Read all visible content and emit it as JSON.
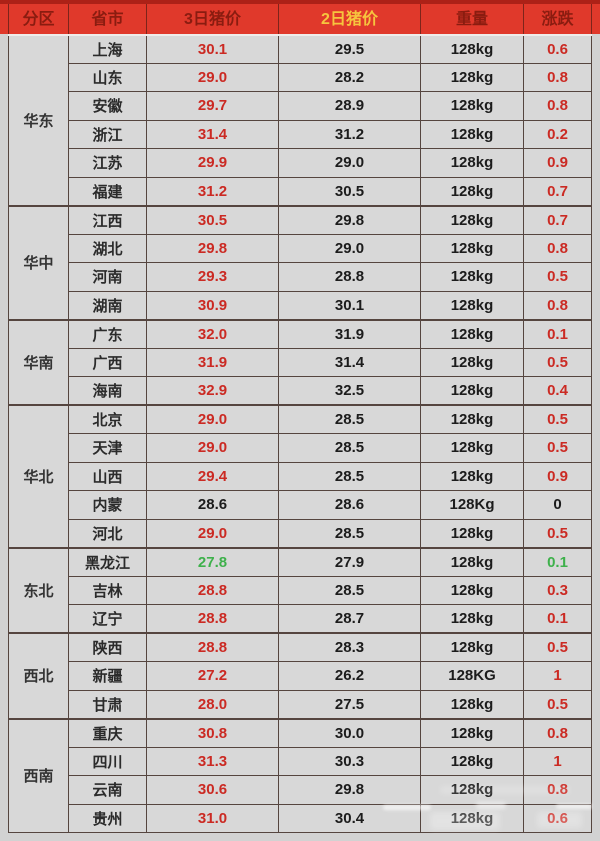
{
  "colors": {
    "red": "#cb2a23",
    "green": "#3eb14b",
    "black": "#1c1c1c",
    "header_bg": "#e0392b",
    "header_text": "#8a1c10",
    "header_highlight": "#f6c53e",
    "row_bg": "#d8d8d8",
    "border": "#55453f",
    "page_bg": "#d2d2d2",
    "top_strip": "#ad2117"
  },
  "chart_data": {
    "type": "table",
    "columns": [
      "分区",
      "省市",
      "3日猪价",
      "2日猪价",
      "重量",
      "涨跌"
    ],
    "highlight_column_index": 3,
    "regions": [
      {
        "name": "华东",
        "rows": [
          {
            "province": "上海",
            "day3": "30.1",
            "day3_color": "red",
            "day2": "29.5",
            "weight": "128kg",
            "change": "0.6",
            "change_color": "red"
          },
          {
            "province": "山东",
            "day3": "29.0",
            "day3_color": "red",
            "day2": "28.2",
            "weight": "128kg",
            "change": "0.8",
            "change_color": "red"
          },
          {
            "province": "安徽",
            "day3": "29.7",
            "day3_color": "red",
            "day2": "28.9",
            "weight": "128kg",
            "change": "0.8",
            "change_color": "red"
          },
          {
            "province": "浙江",
            "day3": "31.4",
            "day3_color": "red",
            "day2": "31.2",
            "weight": "128kg",
            "change": "0.2",
            "change_color": "red"
          },
          {
            "province": "江苏",
            "day3": "29.9",
            "day3_color": "red",
            "day2": "29.0",
            "weight": "128kg",
            "change": "0.9",
            "change_color": "red"
          },
          {
            "province": "福建",
            "day3": "31.2",
            "day3_color": "red",
            "day2": "30.5",
            "weight": "128kg",
            "change": "0.7",
            "change_color": "red"
          }
        ]
      },
      {
        "name": "华中",
        "rows": [
          {
            "province": "江西",
            "day3": "30.5",
            "day3_color": "red",
            "day2": "29.8",
            "weight": "128kg",
            "change": "0.7",
            "change_color": "red"
          },
          {
            "province": "湖北",
            "day3": "29.8",
            "day3_color": "red",
            "day2": "29.0",
            "weight": "128kg",
            "change": "0.8",
            "change_color": "red"
          },
          {
            "province": "河南",
            "day3": "29.3",
            "day3_color": "red",
            "day2": "28.8",
            "weight": "128kg",
            "change": "0.5",
            "change_color": "red"
          },
          {
            "province": "湖南",
            "day3": "30.9",
            "day3_color": "red",
            "day2": "30.1",
            "weight": "128kg",
            "change": "0.8",
            "change_color": "red"
          }
        ]
      },
      {
        "name": "华南",
        "rows": [
          {
            "province": "广东",
            "day3": "32.0",
            "day3_color": "red",
            "day2": "31.9",
            "weight": "128kg",
            "change": "0.1",
            "change_color": "red"
          },
          {
            "province": "广西",
            "day3": "31.9",
            "day3_color": "red",
            "day2": "31.4",
            "weight": "128kg",
            "change": "0.5",
            "change_color": "red"
          },
          {
            "province": "海南",
            "day3": "32.9",
            "day3_color": "red",
            "day2": "32.5",
            "weight": "128kg",
            "change": "0.4",
            "change_color": "red"
          }
        ]
      },
      {
        "name": "华北",
        "rows": [
          {
            "province": "北京",
            "day3": "29.0",
            "day3_color": "red",
            "day2": "28.5",
            "weight": "128kg",
            "change": "0.5",
            "change_color": "red"
          },
          {
            "province": "天津",
            "day3": "29.0",
            "day3_color": "red",
            "day2": "28.5",
            "weight": "128kg",
            "change": "0.5",
            "change_color": "red"
          },
          {
            "province": "山西",
            "day3": "29.4",
            "day3_color": "red",
            "day2": "28.5",
            "weight": "128kg",
            "change": "0.9",
            "change_color": "red"
          },
          {
            "province": "内蒙",
            "day3": "28.6",
            "day3_color": "black",
            "day2": "28.6",
            "weight": "128Kg",
            "change": "0",
            "change_color": "black"
          },
          {
            "province": "河北",
            "day3": "29.0",
            "day3_color": "red",
            "day2": "28.5",
            "weight": "128kg",
            "change": "0.5",
            "change_color": "red"
          }
        ]
      },
      {
        "name": "东北",
        "rows": [
          {
            "province": "黑龙江",
            "day3": "27.8",
            "day3_color": "green",
            "day2": "27.9",
            "weight": "128kg",
            "change": "0.1",
            "change_color": "green"
          },
          {
            "province": "吉林",
            "day3": "28.8",
            "day3_color": "red",
            "day2": "28.5",
            "weight": "128kg",
            "change": "0.3",
            "change_color": "red"
          },
          {
            "province": "辽宁",
            "day3": "28.8",
            "day3_color": "red",
            "day2": "28.7",
            "weight": "128kg",
            "change": "0.1",
            "change_color": "red"
          }
        ]
      },
      {
        "name": "西北",
        "rows": [
          {
            "province": "陕西",
            "day3": "28.8",
            "day3_color": "red",
            "day2": "28.3",
            "weight": "128kg",
            "change": "0.5",
            "change_color": "red"
          },
          {
            "province": "新疆",
            "day3": "27.2",
            "day3_color": "red",
            "day2": "26.2",
            "weight": "128KG",
            "change": "1",
            "change_color": "red"
          },
          {
            "province": "甘肃",
            "day3": "28.0",
            "day3_color": "red",
            "day2": "27.5",
            "weight": "128kg",
            "change": "0.5",
            "change_color": "red"
          }
        ]
      },
      {
        "name": "西南",
        "rows": [
          {
            "province": "重庆",
            "day3": "30.8",
            "day3_color": "red",
            "day2": "30.0",
            "weight": "128kg",
            "change": "0.8",
            "change_color": "red"
          },
          {
            "province": "四川",
            "day3": "31.3",
            "day3_color": "red",
            "day2": "30.3",
            "weight": "128kg",
            "change": "1",
            "change_color": "red"
          },
          {
            "province": "云南",
            "day3": "30.6",
            "day3_color": "red",
            "day2": "29.8",
            "weight": "128kg",
            "change": "0.8",
            "change_color": "red"
          },
          {
            "province": "贵州",
            "day3": "31.0",
            "day3_color": "red",
            "day2": "30.4",
            "weight": "128kg",
            "change": "0.6",
            "change_color": "red"
          }
        ]
      }
    ]
  }
}
